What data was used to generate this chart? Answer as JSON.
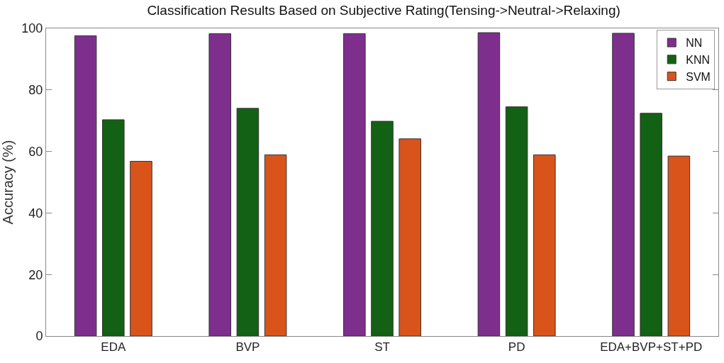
{
  "chart_data": {
    "type": "bar",
    "title": "Classification Results Based on Subjective Rating(Tensing->Neutral->Relaxing)",
    "ylabel": "Accuracy (%)",
    "categories": [
      "EDA",
      "BVP",
      "ST",
      "PD",
      "EDA+BVP+ST+PD"
    ],
    "series": [
      {
        "name": "NN",
        "color": "#7e2f8e",
        "values": [
          97.6,
          98.3,
          98.3,
          98.6,
          98.4
        ]
      },
      {
        "name": "KNN",
        "color": "#136115",
        "values": [
          70.3,
          74.0,
          69.8,
          74.5,
          72.4
        ]
      },
      {
        "name": "SVM",
        "color": "#d9541a",
        "values": [
          56.8,
          58.9,
          64.1,
          58.9,
          58.5
        ]
      }
    ],
    "ylim": [
      0,
      100
    ],
    "yticks": [
      0,
      20,
      40,
      60,
      80,
      100
    ],
    "grid": false,
    "legend": "top right"
  }
}
